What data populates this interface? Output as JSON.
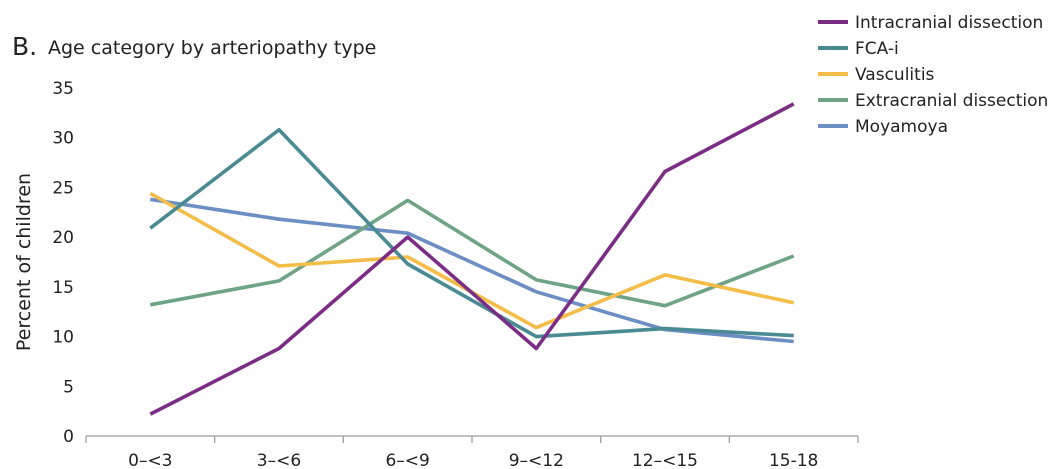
{
  "chart_data": {
    "type": "line",
    "panel_label": "B.",
    "title": "Age category by arteriopathy type",
    "xlabel": "",
    "ylabel": "Percent of children",
    "ylim": [
      0,
      35
    ],
    "yticks": [
      0,
      5,
      10,
      15,
      20,
      25,
      30,
      35
    ],
    "categories": [
      "0–<3",
      "3–<6",
      "6–<9",
      "9–<12",
      "12–<15",
      "15-18"
    ],
    "grid": false,
    "legend_position": "top-right",
    "series": [
      {
        "name": "Intracranial dissection",
        "color": "#7b2d86",
        "values": [
          2.2,
          8.8,
          20.0,
          8.8,
          26.6,
          33.4
        ]
      },
      {
        "name": "FCA-i",
        "color": "#4a8a93",
        "values": [
          20.9,
          30.8,
          17.3,
          10.0,
          10.8,
          10.1
        ]
      },
      {
        "name": "Vasculitis",
        "color": "#f3bd47",
        "values": [
          24.4,
          17.1,
          18.0,
          10.9,
          16.2,
          13.4
        ]
      },
      {
        "name": "Extracranial dissection",
        "color": "#6ea485",
        "values": [
          13.2,
          15.6,
          23.7,
          15.7,
          13.1,
          18.1
        ]
      },
      {
        "name": "Moyamoya",
        "color": "#6b8ec4",
        "values": [
          23.8,
          21.8,
          20.4,
          14.5,
          10.7,
          9.5
        ]
      }
    ]
  }
}
